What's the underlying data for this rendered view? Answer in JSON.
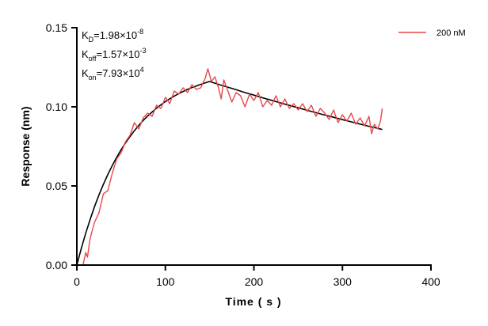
{
  "chart_data": {
    "type": "line",
    "title": "",
    "xlabel": "Time ( s )",
    "ylabel": "Response (nm)",
    "xlim": [
      0,
      400
    ],
    "ylim": [
      0,
      0.15
    ],
    "xticks": [
      "0",
      "100",
      "200",
      "300",
      "400"
    ],
    "yticks": [
      "0.00",
      "0.05",
      "0.10",
      "0.15"
    ],
    "grid": false,
    "legend_position": "top-right",
    "annotations": [
      {
        "base": "K",
        "sub": "D",
        "value": "=1.98×10",
        "exp": "-8"
      },
      {
        "base": "K",
        "sub": "off",
        "value": "=1.57×10",
        "exp": "-3"
      },
      {
        "base": "K",
        "sub": "on",
        "value": "=7.93×10",
        "exp": "4"
      }
    ],
    "series": [
      {
        "name": "200 nM",
        "color": "#e8474a",
        "x": [
          7,
          10,
          12,
          15,
          20,
          25,
          30,
          35,
          40,
          45,
          50,
          55,
          60,
          65,
          70,
          75,
          80,
          85,
          90,
          95,
          100,
          105,
          110,
          115,
          120,
          125,
          130,
          135,
          140,
          145,
          148,
          152,
          156,
          160,
          163,
          166,
          170,
          175,
          180,
          185,
          190,
          195,
          200,
          205,
          210,
          215,
          220,
          225,
          230,
          235,
          240,
          245,
          250,
          255,
          260,
          265,
          270,
          275,
          280,
          285,
          290,
          295,
          300,
          305,
          310,
          315,
          320,
          325,
          330,
          333,
          336,
          340,
          343,
          345
        ],
        "y": [
          0.0,
          0.008,
          0.005,
          0.017,
          0.027,
          0.033,
          0.045,
          0.047,
          0.058,
          0.067,
          0.071,
          0.078,
          0.082,
          0.09,
          0.086,
          0.093,
          0.096,
          0.094,
          0.101,
          0.099,
          0.106,
          0.102,
          0.11,
          0.108,
          0.112,
          0.109,
          0.114,
          0.111,
          0.112,
          0.118,
          0.124,
          0.116,
          0.119,
          0.112,
          0.105,
          0.117,
          0.111,
          0.103,
          0.109,
          0.107,
          0.1,
          0.108,
          0.104,
          0.109,
          0.1,
          0.104,
          0.101,
          0.107,
          0.1,
          0.105,
          0.099,
          0.102,
          0.098,
          0.102,
          0.097,
          0.101,
          0.094,
          0.099,
          0.096,
          0.092,
          0.098,
          0.09,
          0.095,
          0.091,
          0.096,
          0.089,
          0.093,
          0.088,
          0.094,
          0.083,
          0.089,
          0.086,
          0.091,
          0.099
        ]
      },
      {
        "role": "fit",
        "color": "#000000",
        "x": [
          0,
          5,
          10,
          15,
          20,
          25,
          30,
          35,
          40,
          45,
          50,
          55,
          60,
          65,
          70,
          75,
          80,
          85,
          90,
          95,
          100,
          105,
          110,
          115,
          120,
          125,
          130,
          135,
          140,
          145,
          150,
          160,
          170,
          180,
          190,
          200,
          210,
          220,
          230,
          240,
          250,
          260,
          270,
          280,
          290,
          300,
          310,
          320,
          330,
          340,
          345
        ],
        "y": [
          0,
          0.0105,
          0.0201,
          0.0289,
          0.0369,
          0.0443,
          0.051,
          0.0572,
          0.0629,
          0.0681,
          0.0729,
          0.0772,
          0.0812,
          0.0849,
          0.0883,
          0.0914,
          0.0942,
          0.0967,
          0.0991,
          0.1013,
          0.1033,
          0.1051,
          0.1068,
          0.1083,
          0.1097,
          0.111,
          0.1122,
          0.1132,
          0.1142,
          0.1151,
          0.116,
          0.1142,
          0.1125,
          0.1108,
          0.109,
          0.1074,
          0.1057,
          0.1041,
          0.1025,
          0.1009,
          0.0994,
          0.0978,
          0.0963,
          0.0948,
          0.0934,
          0.0919,
          0.0905,
          0.0891,
          0.0877,
          0.0864,
          0.0857
        ]
      }
    ]
  }
}
